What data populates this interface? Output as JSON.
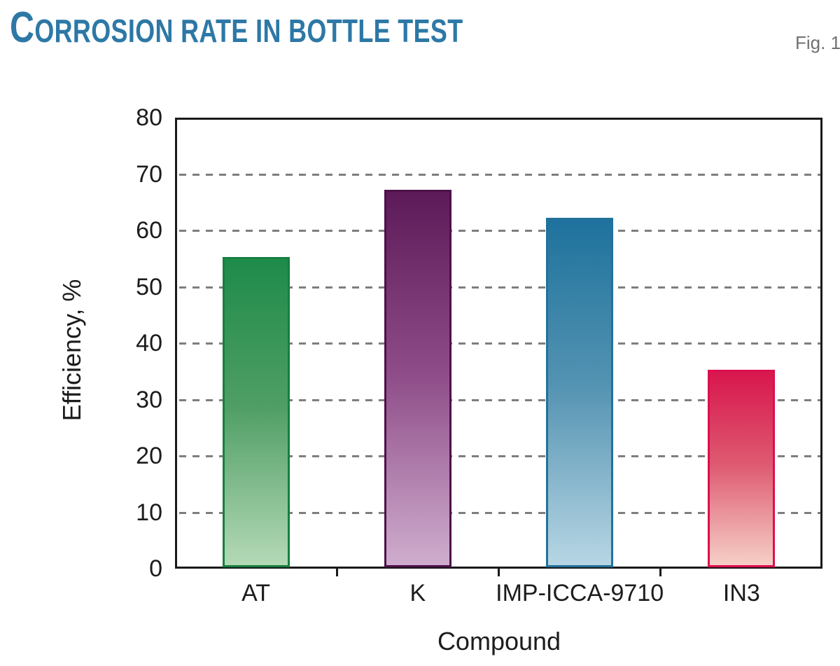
{
  "header": {
    "title": "CORROSION RATE IN BOTTLE TEST",
    "fig_label": "Fig. 1"
  },
  "chart_data": {
    "type": "bar",
    "title": "CORROSION RATE IN BOTTLE TEST",
    "categories": [
      "AT",
      "K",
      "IMP-ICCA-9710",
      "IN3"
    ],
    "values": [
      55,
      67,
      62,
      35
    ],
    "xlabel": "Compound",
    "ylabel": "Efficiency, %",
    "ylim": [
      0,
      80
    ],
    "yticks": [
      0,
      10,
      20,
      30,
      40,
      50,
      60,
      70,
      80
    ],
    "grid": {
      "horizontal": true,
      "style": "dashed",
      "at": [
        10,
        20,
        30,
        40,
        50,
        60,
        70
      ],
      "color": "#7e7e7e"
    },
    "legend_position": "none",
    "bar_styles": [
      {
        "category": "AT",
        "top_color": "#1e8b4a",
        "mid_color": "#4f9e65",
        "bottom_color": "#b4d9b6",
        "border_color": "#157f40"
      },
      {
        "category": "K",
        "top_color": "#5c1b58",
        "mid_color": "#8d4b87",
        "bottom_color": "#cfadce",
        "border_color": "#4d1149"
      },
      {
        "category": "IMP-ICCA-9710",
        "top_color": "#1e729d",
        "mid_color": "#5493b2",
        "bottom_color": "#b7d6e4",
        "border_color": "#23719a"
      },
      {
        "category": "IN3",
        "top_color": "#d8164d",
        "mid_color": "#de5a71",
        "bottom_color": "#f6d0c6",
        "border_color": "#dc0f4e"
      }
    ]
  },
  "colors": {
    "title_text": "#2d78a6",
    "fig_label_text": "#717171",
    "axis_frame": "#1a1a1a",
    "tick_text": "#1c1c1c",
    "background": "#ffffff"
  }
}
